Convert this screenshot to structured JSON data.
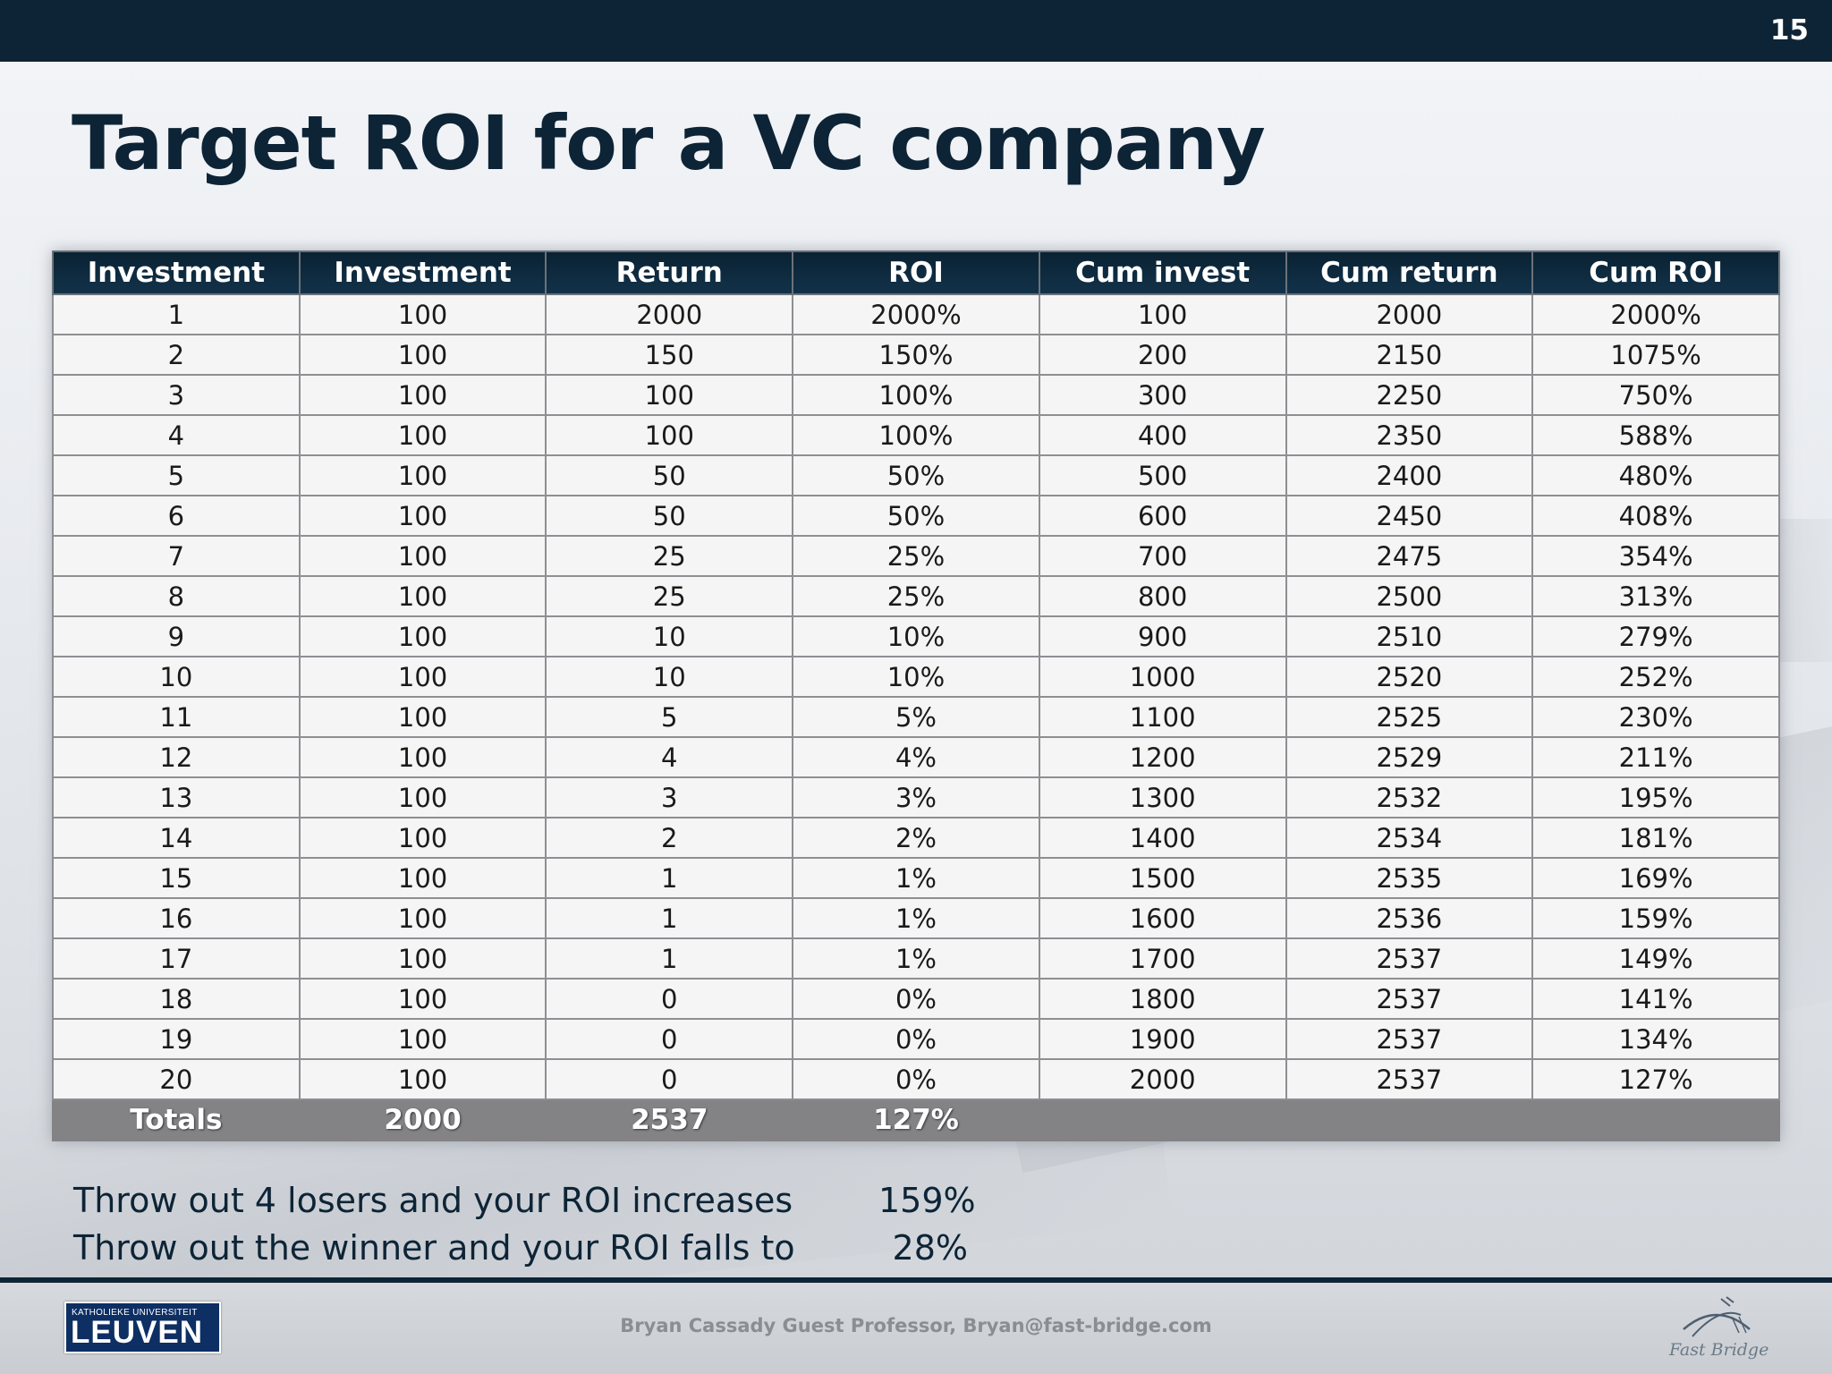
{
  "slide": {
    "number": "15",
    "title": "Target ROI for a VC company"
  },
  "table": {
    "headers": [
      "Investment",
      "Investment",
      "Return",
      "ROI",
      "Cum invest",
      "Cum return",
      "Cum ROI"
    ],
    "rows": [
      [
        "1",
        "100",
        "2000",
        "2000%",
        "100",
        "2000",
        "2000%"
      ],
      [
        "2",
        "100",
        "150",
        "150%",
        "200",
        "2150",
        "1075%"
      ],
      [
        "3",
        "100",
        "100",
        "100%",
        "300",
        "2250",
        "750%"
      ],
      [
        "4",
        "100",
        "100",
        "100%",
        "400",
        "2350",
        "588%"
      ],
      [
        "5",
        "100",
        "50",
        "50%",
        "500",
        "2400",
        "480%"
      ],
      [
        "6",
        "100",
        "50",
        "50%",
        "600",
        "2450",
        "408%"
      ],
      [
        "7",
        "100",
        "25",
        "25%",
        "700",
        "2475",
        "354%"
      ],
      [
        "8",
        "100",
        "25",
        "25%",
        "800",
        "2500",
        "313%"
      ],
      [
        "9",
        "100",
        "10",
        "10%",
        "900",
        "2510",
        "279%"
      ],
      [
        "10",
        "100",
        "10",
        "10%",
        "1000",
        "2520",
        "252%"
      ],
      [
        "11",
        "100",
        "5",
        "5%",
        "1100",
        "2525",
        "230%"
      ],
      [
        "12",
        "100",
        "4",
        "4%",
        "1200",
        "2529",
        "211%"
      ],
      [
        "13",
        "100",
        "3",
        "3%",
        "1300",
        "2532",
        "195%"
      ],
      [
        "14",
        "100",
        "2",
        "2%",
        "1400",
        "2534",
        "181%"
      ],
      [
        "15",
        "100",
        "1",
        "1%",
        "1500",
        "2535",
        "169%"
      ],
      [
        "16",
        "100",
        "1",
        "1%",
        "1600",
        "2536",
        "159%"
      ],
      [
        "17",
        "100",
        "1",
        "1%",
        "1700",
        "2537",
        "149%"
      ],
      [
        "18",
        "100",
        "0",
        "0%",
        "1800",
        "2537",
        "141%"
      ],
      [
        "19",
        "100",
        "0",
        "0%",
        "1900",
        "2537",
        "134%"
      ],
      [
        "20",
        "100",
        "0",
        "0%",
        "2000",
        "2537",
        "127%"
      ]
    ],
    "totals": [
      "Totals",
      "2000",
      "2537",
      "127%",
      "",
      "",
      ""
    ]
  },
  "notes": [
    {
      "text": "Throw out 4 losers and your ROI increases",
      "value": "159%"
    },
    {
      "text": "Throw out the winner and your ROI falls to",
      "value": "28%"
    }
  ],
  "footer": {
    "logo_small": "KATHOLIEKE UNIVERSITEIT",
    "logo_big": "LEUVEN",
    "credit": "Bryan Cassady Guest Professor, Bryan@fast-bridge.com",
    "brand": "Fast Bridge"
  },
  "colors": {
    "navy": "#0d2436",
    "totals_gray": "#838385",
    "leuven_blue": "#0d2f63"
  }
}
